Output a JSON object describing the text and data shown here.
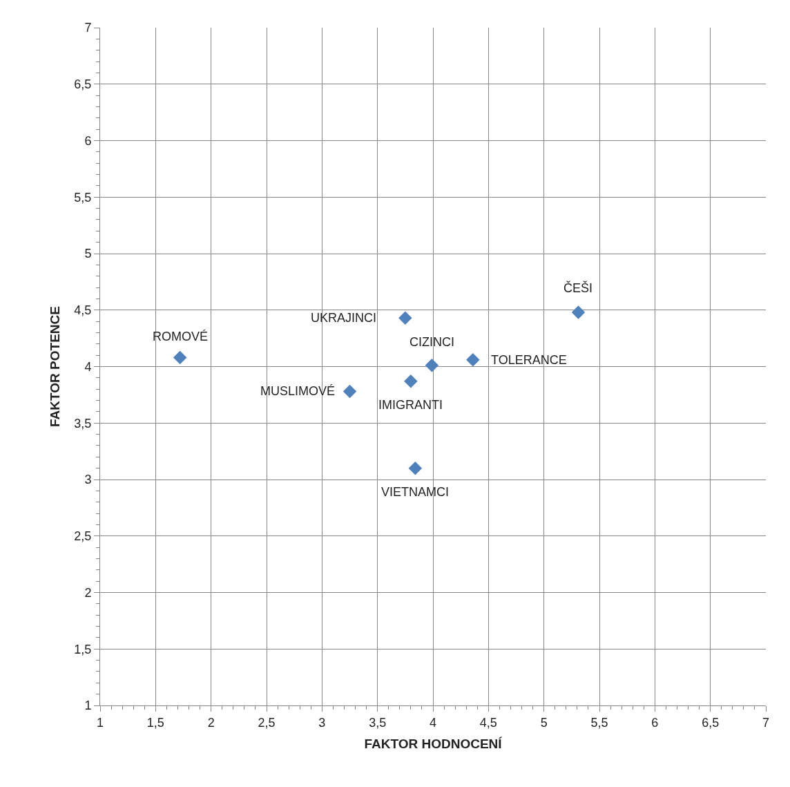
{
  "chart_data": {
    "type": "scatter",
    "xlabel": "FAKTOR HODNOCENÍ",
    "ylabel": "FAKTOR POTENCE",
    "x": [
      1.72,
      3.75,
      5.31,
      3.99,
      4.36,
      3.25,
      3.8,
      3.84
    ],
    "values": [
      4.08,
      4.43,
      4.48,
      4.01,
      4.06,
      3.78,
      3.87,
      3.1
    ],
    "color": "#4f81bd",
    "marker": "diamond",
    "grid": true,
    "legend": false,
    "annotations": [
      {
        "text": "ROMOVÉ",
        "x": 1.72,
        "y": 4.08
      },
      {
        "text": "UKRAJINCI",
        "x": 3.75,
        "y": 4.43
      },
      {
        "text": "ČEŠI",
        "x": 5.31,
        "y": 4.48
      },
      {
        "text": "CIZINCI",
        "x": 3.99,
        "y": 4.01
      },
      {
        "text": "TOLERANCE",
        "x": 4.36,
        "y": 4.06
      },
      {
        "text": "MUSLIMOVÉ",
        "x": 3.25,
        "y": 3.78
      },
      {
        "text": "IMIGRANTI",
        "x": 3.8,
        "y": 3.87
      },
      {
        "text": "VIETNAMCI",
        "x": 3.84,
        "y": 3.1
      }
    ],
    "xlim": [
      1,
      7
    ],
    "ylim": [
      1,
      7
    ],
    "xticks": [
      1,
      {
        "value": 1.5,
        "label": "1,5"
      },
      2,
      {
        "value": 2.5,
        "label": "2,5"
      },
      3,
      {
        "value": 3.5,
        "label": "3,5"
      },
      4,
      {
        "value": 4.5,
        "label": "4,5"
      },
      5,
      {
        "value": 5.5,
        "label": "5,5"
      },
      6,
      {
        "value": 6.5,
        "label": "6,5"
      },
      7
    ],
    "yticks": [
      1,
      {
        "value": 1.5,
        "label": "1,5"
      },
      2,
      {
        "value": 2.5,
        "label": "2,5"
      },
      3,
      {
        "value": 3.5,
        "label": "3,5"
      },
      4,
      {
        "value": 4.5,
        "label": "4,5"
      },
      5,
      {
        "value": 5.5,
        "label": "5,5"
      },
      6,
      {
        "value": 6.5,
        "label": "6,5"
      },
      7
    ]
  }
}
